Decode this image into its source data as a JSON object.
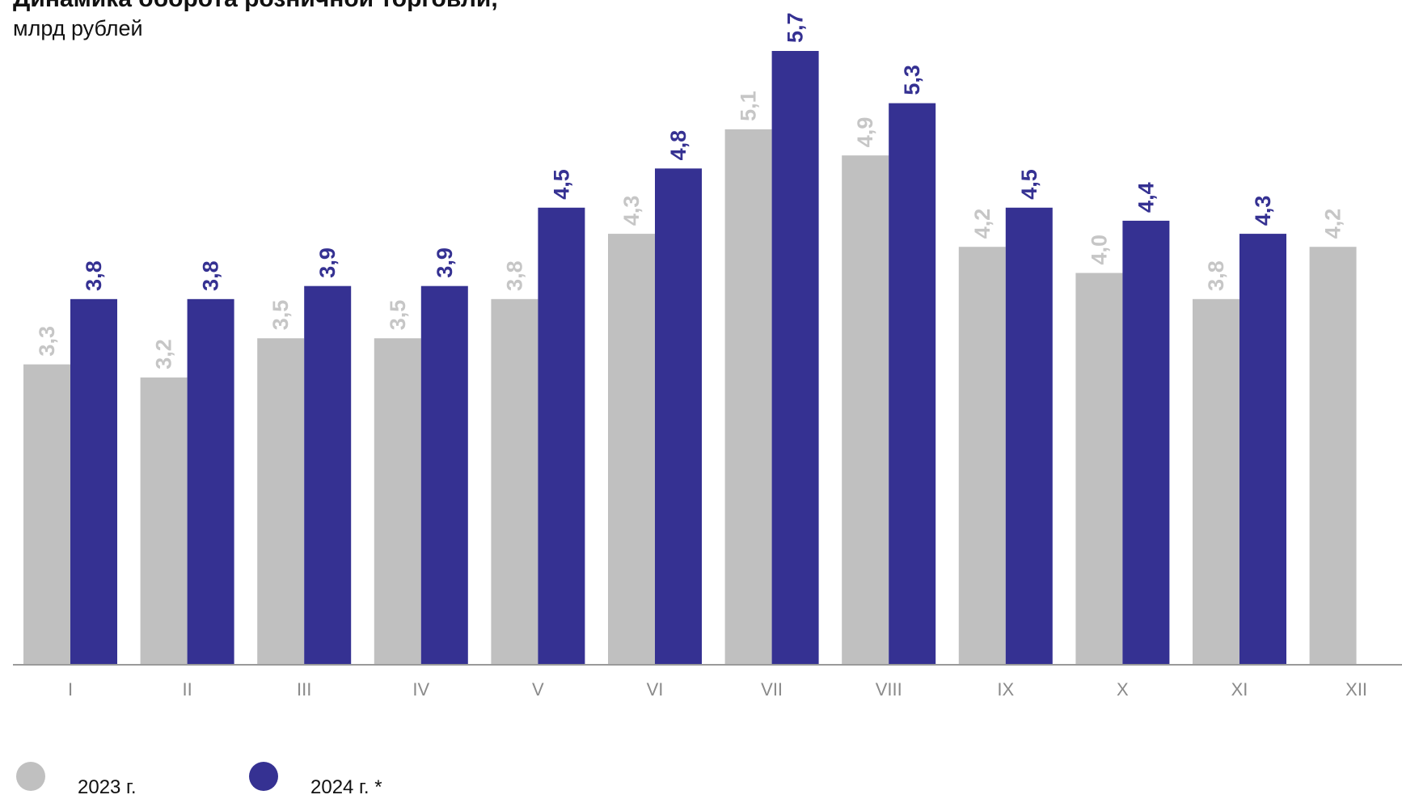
{
  "title": "Динамика оборота розничной торговли,",
  "subtitle": "млрд рублей",
  "colors": {
    "2023": "#c0c0c0",
    "2024": "#353192"
  },
  "legend": [
    {
      "label": "2023 г.",
      "color": "#c0c0c0"
    },
    {
      "label": "2024 г. *",
      "color": "#353192"
    }
  ],
  "chart_data": {
    "type": "bar",
    "categories": [
      "I",
      "II",
      "III",
      "IV",
      "V",
      "VI",
      "VII",
      "VIII",
      "IX",
      "X",
      "XI",
      "XII"
    ],
    "series": [
      {
        "name": "2023 г.",
        "values": [
          3.3,
          3.2,
          3.5,
          3.5,
          3.8,
          4.3,
          5.1,
          4.9,
          4.2,
          4.0,
          3.8,
          4.2
        ],
        "labels": [
          "3,3",
          "3,2",
          "3,5",
          "3,5",
          "3,8",
          "4,3",
          "5,1",
          "4,9",
          "4,2",
          "4,0",
          "3,8",
          "4,2"
        ]
      },
      {
        "name": "2024 г. *",
        "values": [
          3.8,
          3.8,
          3.9,
          3.9,
          4.5,
          4.8,
          5.7,
          5.3,
          4.5,
          4.4,
          4.3,
          null
        ],
        "labels": [
          "3,8",
          "3,8",
          "3,9",
          "3,9",
          "4,5",
          "4,8",
          "5,7",
          "5,3",
          "4,5",
          "4,4",
          "4,3",
          null
        ]
      }
    ],
    "ylim": [
      1.0,
      5.7
    ],
    "grid": false,
    "legend_position": "bottom-left"
  }
}
